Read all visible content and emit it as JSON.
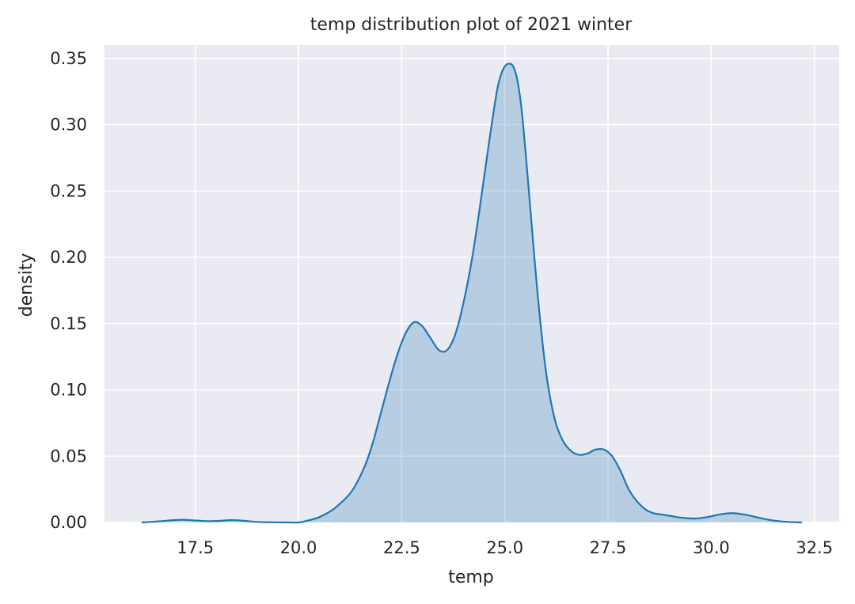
{
  "chart_data": {
    "type": "area",
    "title": "temp distribution plot of 2021 winter",
    "xlabel": "temp",
    "ylabel": "density",
    "xlim": [
      15.3,
      33.1
    ],
    "ylim": [
      0.0,
      0.36
    ],
    "x_ticks": [
      17.5,
      20.0,
      22.5,
      25.0,
      27.5,
      30.0,
      32.5
    ],
    "x_tick_labels": [
      "17.5",
      "20.0",
      "22.5",
      "25.0",
      "27.5",
      "30.0",
      "32.5"
    ],
    "y_ticks": [
      0.0,
      0.05,
      0.1,
      0.15,
      0.2,
      0.25,
      0.3,
      0.35
    ],
    "y_tick_labels": [
      "0.00",
      "0.05",
      "0.10",
      "0.15",
      "0.20",
      "0.25",
      "0.30",
      "0.35"
    ],
    "grid": true,
    "legend": "none",
    "colors": {
      "background": "#eaeaf2",
      "grid": "#ffffff",
      "line": "#1f77b4",
      "fill": "#1f77b4"
    },
    "series": [
      {
        "x": [
          16.2,
          16.6,
          17.0,
          17.2,
          17.5,
          17.8,
          18.1,
          18.4,
          18.7,
          19.0,
          19.4,
          19.8,
          20.0,
          20.2,
          20.5,
          20.8,
          21.0,
          21.3,
          21.6,
          21.8,
          22.0,
          22.2,
          22.4,
          22.6,
          22.8,
          23.0,
          23.2,
          23.4,
          23.6,
          23.8,
          24.0,
          24.2,
          24.4,
          24.6,
          24.8,
          24.9,
          25.0,
          25.1,
          25.2,
          25.3,
          25.4,
          25.5,
          25.6,
          25.8,
          26.0,
          26.2,
          26.4,
          26.6,
          26.8,
          27.0,
          27.2,
          27.4,
          27.6,
          27.8,
          28.0,
          28.2,
          28.4,
          28.6,
          28.8,
          29.0,
          29.3,
          29.6,
          29.9,
          30.2,
          30.5,
          30.8,
          31.1,
          31.4,
          31.7,
          32.0,
          32.2
        ],
        "y": [
          0.0,
          0.0008,
          0.0018,
          0.002,
          0.0015,
          0.001,
          0.0012,
          0.0018,
          0.0012,
          0.0004,
          0.0001,
          0.0,
          0.0,
          0.0012,
          0.004,
          0.009,
          0.014,
          0.024,
          0.042,
          0.06,
          0.083,
          0.106,
          0.127,
          0.143,
          0.151,
          0.148,
          0.139,
          0.13,
          0.13,
          0.142,
          0.166,
          0.198,
          0.239,
          0.283,
          0.324,
          0.337,
          0.344,
          0.346,
          0.344,
          0.334,
          0.313,
          0.28,
          0.243,
          0.17,
          0.113,
          0.079,
          0.062,
          0.054,
          0.051,
          0.052,
          0.055,
          0.055,
          0.05,
          0.039,
          0.025,
          0.016,
          0.01,
          0.007,
          0.006,
          0.005,
          0.0035,
          0.003,
          0.004,
          0.006,
          0.007,
          0.006,
          0.004,
          0.002,
          0.0008,
          0.0002,
          0.0
        ]
      }
    ]
  }
}
